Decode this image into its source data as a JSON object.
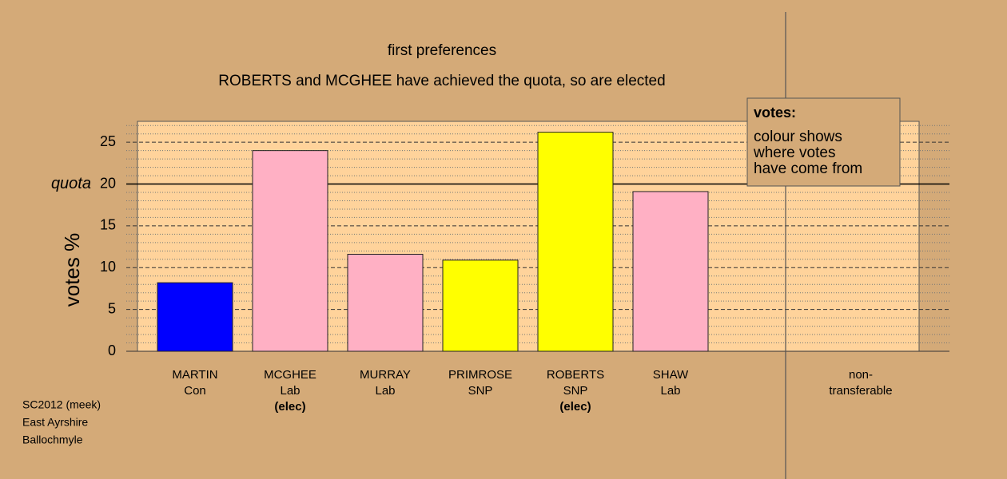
{
  "chart_data": {
    "type": "bar",
    "title": "first preferences",
    "subtitle": "ROBERTS and MCGHEE have achieved the quota, so are elected",
    "y_label": "votes %",
    "categories": [
      [
        "MARTIN",
        "Con"
      ],
      [
        "MCGHEE",
        "Lab",
        "(elec)"
      ],
      [
        "MURRAY",
        "Lab"
      ],
      [
        "PRIMROSE",
        "SNP"
      ],
      [
        "ROBERTS",
        "SNP",
        "(elec)"
      ],
      [
        "SHAW",
        "Lab"
      ],
      [
        "non-",
        "transferable"
      ]
    ],
    "values": [
      8.2,
      24.0,
      11.6,
      10.9,
      26.2,
      19.1,
      0
    ],
    "colors": [
      "#0000ff",
      "#ffb0c4",
      "#ffb0c4",
      "#ffff00",
      "#ffff00",
      "#ffb0c4",
      "#ffd39b"
    ],
    "ylim": [
      0,
      27.5
    ],
    "yticks": [
      0,
      5,
      10,
      15,
      20,
      25
    ],
    "yminor": [
      1,
      2,
      3,
      4,
      6,
      7,
      8,
      9,
      11,
      12,
      13,
      14,
      16,
      17,
      18,
      19,
      21,
      22,
      23,
      24,
      26,
      27
    ],
    "quota": {
      "label": "quota",
      "value": 20
    },
    "legend": {
      "title": "votes:",
      "lines": [
        "colour shows",
        "where votes",
        "have come from"
      ]
    },
    "footer": [
      "SC2012 (meek)",
      "East Ayrshire",
      "Ballochmyle"
    ]
  }
}
